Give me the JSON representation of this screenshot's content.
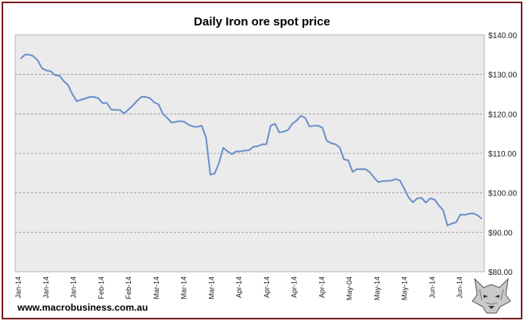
{
  "chart_data": {
    "type": "line",
    "title": "Daily Iron ore spot price",
    "xlabel": "",
    "ylabel": "",
    "ylim": [
      80,
      140
    ],
    "y_ticks": [
      "$80.00",
      "$90.00",
      "$100.00",
      "$110.00",
      "$120.00",
      "$130.00",
      "$140.00"
    ],
    "x_tick_labels": [
      "Jan-14",
      "Jan-14",
      "Jan-14",
      "Feb-14",
      "Feb-14",
      "Mar-14",
      "Mar-14",
      "Mar-14",
      "Apr-14",
      "Apr-14",
      "Apr-14",
      "Apr-14",
      "May-04",
      "May-14",
      "May-14",
      "Jun-14",
      "Jun-14"
    ],
    "series": [
      {
        "name": "Daily Iron ore spot price",
        "color": "#6b8fc9",
        "values": [
          134.0,
          135.0,
          135.0,
          134.6,
          133.5,
          131.5,
          131.0,
          130.8,
          129.8,
          129.7,
          128.3,
          127.3,
          125.0,
          123.2,
          123.6,
          123.9,
          124.3,
          124.3,
          124.0,
          122.7,
          122.8,
          121.1,
          121.0,
          121.0,
          120.1,
          121.1,
          122.1,
          123.3,
          124.3,
          124.3,
          124.0,
          122.9,
          122.4,
          120.0,
          119.0,
          117.8,
          118.0,
          118.2,
          118.0,
          117.2,
          116.8,
          116.7,
          117.0,
          114.0,
          104.6,
          104.9,
          107.5,
          111.4,
          110.5,
          109.8,
          110.5,
          110.5,
          110.7,
          110.8,
          111.7,
          111.8,
          112.3,
          112.3,
          117.0,
          117.5,
          115.3,
          115.5,
          115.9,
          117.5,
          118.3,
          119.5,
          119.0,
          116.8,
          117.0,
          117.0,
          116.5,
          113.2,
          112.6,
          112.3,
          111.5,
          108.5,
          108.2,
          105.3,
          106.0,
          106.0,
          106.0,
          105.2,
          103.8,
          102.7,
          103.0,
          103.0,
          103.1,
          103.5,
          103.1,
          101.0,
          98.8,
          97.6,
          98.6,
          98.7,
          97.5,
          98.6,
          98.3,
          96.8,
          95.6,
          91.7,
          92.2,
          92.5,
          94.5,
          94.4,
          94.7,
          94.8,
          94.3,
          93.4
        ]
      }
    ],
    "grid": true,
    "legend": "none",
    "y_axis_position": "right"
  },
  "watermark": {
    "text": "www.macrobusiness.com.au"
  },
  "logo": {
    "icon": "wolf-head-icon"
  }
}
